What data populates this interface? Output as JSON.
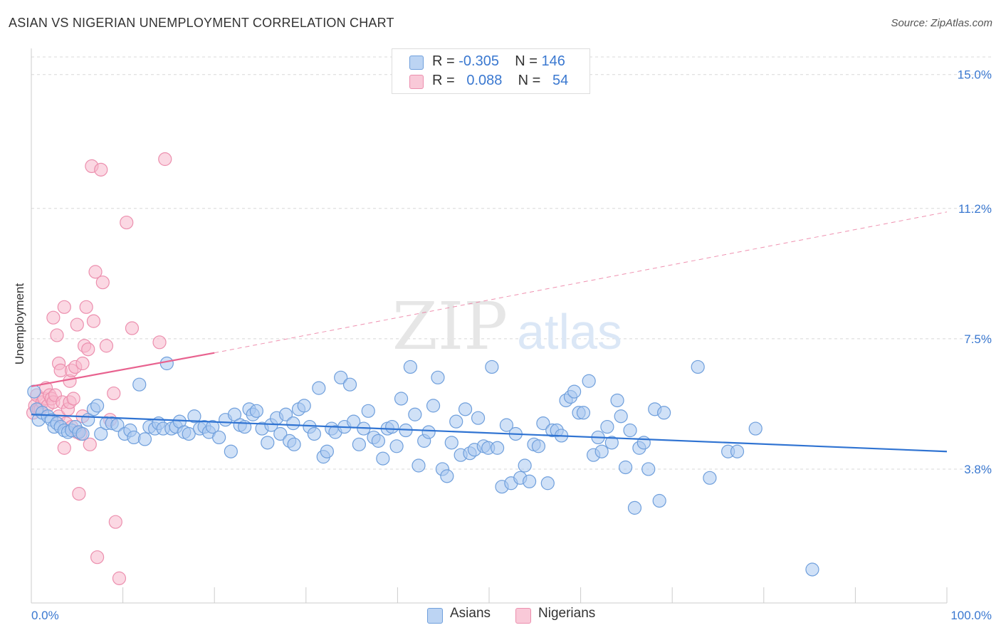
{
  "title": "ASIAN VS NIGERIAN UNEMPLOYMENT CORRELATION CHART",
  "source": "Source: ZipAtlas.com",
  "watermark": {
    "part1": "ZIP",
    "part2": "atlas"
  },
  "legend": {
    "rows": [
      {
        "r_label": "R = ",
        "r_value": "-0.305",
        "n_label": "N = ",
        "n_value": "146"
      },
      {
        "r_label": "R = ",
        "r_value": "0.088",
        "n_label": "N = ",
        "n_value": "54"
      }
    ]
  },
  "bottom_legend": [
    {
      "name": "Asians"
    },
    {
      "name": "Nigerians"
    }
  ],
  "colors": {
    "asian_fill": "#a9c8f0",
    "asian_stroke": "#6f9fdc",
    "asian_line": "#2f73d2",
    "nigerian_fill": "#f7b8cc",
    "nigerian_stroke": "#ec8fae",
    "nigerian_line": "#e8628f",
    "tick_label": "#3a78d0",
    "grid": "#d8d8d8"
  },
  "chart_data": {
    "type": "scatter",
    "title": "ASIAN VS NIGERIAN UNEMPLOYMENT CORRELATION CHART",
    "xlabel": "",
    "ylabel": "Unemployment",
    "xlim": [
      0,
      100
    ],
    "ylim": [
      0,
      15.5
    ],
    "x_tick_labels": [
      {
        "value": 0,
        "label": "0.0%"
      },
      {
        "value": 100,
        "label": "100.0%"
      }
    ],
    "y_tick_labels": [
      {
        "value": 3.8,
        "label": "3.8%"
      },
      {
        "value": 7.5,
        "label": "7.5%"
      },
      {
        "value": 11.2,
        "label": "11.2%"
      },
      {
        "value": 15.0,
        "label": "15.0%"
      }
    ],
    "grid": "horizontal dashed",
    "legend_placement": "top-center",
    "series": [
      {
        "name": "Asians",
        "r": -0.305,
        "n": 146,
        "trend": {
          "x": [
            0,
            100
          ],
          "y": [
            5.35,
            4.3
          ],
          "style": "solid"
        },
        "points": [
          [
            0.3,
            6.0
          ],
          [
            0.6,
            5.5
          ],
          [
            0.8,
            5.2
          ],
          [
            1.2,
            5.4
          ],
          [
            1.8,
            5.3
          ],
          [
            2.2,
            5.2
          ],
          [
            2.5,
            5.0
          ],
          [
            2.8,
            5.1
          ],
          [
            3.2,
            5.0
          ],
          [
            3.6,
            4.9
          ],
          [
            4.0,
            4.85
          ],
          [
            4.4,
            4.9
          ],
          [
            4.8,
            5.0
          ],
          [
            5.2,
            4.85
          ],
          [
            5.6,
            4.8
          ],
          [
            6.2,
            5.2
          ],
          [
            6.8,
            5.5
          ],
          [
            7.2,
            5.6
          ],
          [
            7.6,
            4.8
          ],
          [
            8.2,
            5.1
          ],
          [
            8.8,
            5.1
          ],
          [
            9.4,
            5.05
          ],
          [
            10.2,
            4.8
          ],
          [
            10.8,
            4.9
          ],
          [
            11.2,
            4.7
          ],
          [
            11.8,
            6.2
          ],
          [
            12.4,
            4.65
          ],
          [
            12.9,
            5.0
          ],
          [
            13.5,
            4.95
          ],
          [
            13.9,
            5.1
          ],
          [
            14.4,
            4.95
          ],
          [
            14.8,
            6.8
          ],
          [
            15.3,
            4.95
          ],
          [
            15.8,
            5.0
          ],
          [
            16.2,
            5.15
          ],
          [
            16.7,
            4.85
          ],
          [
            17.2,
            4.8
          ],
          [
            17.8,
            5.3
          ],
          [
            18.4,
            4.95
          ],
          [
            18.9,
            5.0
          ],
          [
            19.4,
            4.85
          ],
          [
            19.8,
            5.0
          ],
          [
            20.5,
            4.7
          ],
          [
            21.2,
            5.2
          ],
          [
            21.8,
            4.3
          ],
          [
            22.2,
            5.35
          ],
          [
            22.8,
            5.05
          ],
          [
            23.3,
            5.0
          ],
          [
            23.8,
            5.5
          ],
          [
            24.2,
            5.35
          ],
          [
            24.6,
            5.45
          ],
          [
            25.2,
            4.95
          ],
          [
            25.8,
            4.55
          ],
          [
            26.2,
            5.05
          ],
          [
            26.8,
            5.25
          ],
          [
            27.2,
            4.8
          ],
          [
            27.8,
            5.35
          ],
          [
            28.2,
            4.6
          ],
          [
            28.6,
            5.1
          ],
          [
            29.2,
            5.5
          ],
          [
            29.8,
            5.6
          ],
          [
            30.4,
            5.0
          ],
          [
            30.9,
            4.8
          ],
          [
            31.4,
            6.1
          ],
          [
            31.9,
            4.15
          ],
          [
            32.3,
            4.3
          ],
          [
            32.8,
            4.95
          ],
          [
            33.2,
            4.85
          ],
          [
            33.8,
            6.4
          ],
          [
            34.2,
            5.0
          ],
          [
            34.8,
            6.2
          ],
          [
            35.2,
            5.15
          ],
          [
            35.8,
            4.5
          ],
          [
            36.3,
            4.95
          ],
          [
            36.8,
            5.45
          ],
          [
            37.4,
            4.7
          ],
          [
            37.9,
            4.6
          ],
          [
            38.4,
            4.1
          ],
          [
            38.9,
            4.95
          ],
          [
            39.4,
            5.0
          ],
          [
            39.9,
            4.45
          ],
          [
            40.4,
            5.8
          ],
          [
            40.9,
            4.9
          ],
          [
            41.4,
            6.7
          ],
          [
            41.9,
            5.35
          ],
          [
            42.3,
            3.9
          ],
          [
            42.9,
            4.6
          ],
          [
            43.4,
            4.85
          ],
          [
            43.9,
            5.6
          ],
          [
            44.4,
            6.4
          ],
          [
            44.9,
            3.8
          ],
          [
            45.4,
            3.6
          ],
          [
            45.9,
            4.55
          ],
          [
            46.4,
            5.15
          ],
          [
            46.9,
            4.2
          ],
          [
            47.4,
            5.5
          ],
          [
            47.9,
            4.25
          ],
          [
            48.4,
            4.35
          ],
          [
            48.8,
            5.25
          ],
          [
            49.4,
            4.45
          ],
          [
            49.9,
            4.4
          ],
          [
            50.3,
            6.7
          ],
          [
            50.9,
            4.4
          ],
          [
            51.4,
            3.3
          ],
          [
            51.9,
            5.05
          ],
          [
            52.4,
            3.4
          ],
          [
            52.9,
            4.8
          ],
          [
            53.4,
            3.55
          ],
          [
            53.9,
            3.9
          ],
          [
            54.4,
            3.45
          ],
          [
            54.9,
            4.5
          ],
          [
            55.4,
            4.45
          ],
          [
            55.9,
            5.1
          ],
          [
            56.4,
            3.4
          ],
          [
            56.9,
            4.9
          ],
          [
            57.4,
            4.9
          ],
          [
            57.9,
            4.75
          ],
          [
            58.4,
            5.75
          ],
          [
            58.9,
            5.85
          ],
          [
            59.3,
            6.0
          ],
          [
            59.8,
            5.4
          ],
          [
            60.3,
            5.4
          ],
          [
            60.9,
            6.3
          ],
          [
            61.4,
            4.2
          ],
          [
            61.9,
            4.7
          ],
          [
            62.3,
            4.3
          ],
          [
            62.9,
            5.0
          ],
          [
            63.4,
            4.55
          ],
          [
            64.0,
            5.75
          ],
          [
            64.4,
            5.3
          ],
          [
            64.9,
            3.85
          ],
          [
            65.4,
            4.9
          ],
          [
            65.9,
            2.7
          ],
          [
            66.4,
            4.4
          ],
          [
            66.9,
            4.55
          ],
          [
            67.4,
            3.8
          ],
          [
            68.1,
            5.5
          ],
          [
            68.6,
            2.9
          ],
          [
            69.1,
            5.4
          ],
          [
            72.8,
            6.7
          ],
          [
            74.1,
            3.55
          ],
          [
            76.1,
            4.3
          ],
          [
            77.1,
            4.3
          ],
          [
            79.1,
            4.95
          ],
          [
            85.3,
            0.95
          ],
          [
            28.7,
            4.5
          ]
        ]
      },
      {
        "name": "Nigerians",
        "r": 0.088,
        "n": 54,
        "trend": {
          "x": [
            0,
            20
          ],
          "y": [
            6.15,
            7.1
          ],
          "style": "solid",
          "extension": {
            "x": [
              20,
              100
            ],
            "y": [
              7.1,
              11.1
            ],
            "style": "dashed"
          }
        },
        "points": [
          [
            0.2,
            5.4
          ],
          [
            0.4,
            5.6
          ],
          [
            0.6,
            5.9
          ],
          [
            0.8,
            5.5
          ],
          [
            1.0,
            5.5
          ],
          [
            1.2,
            5.7
          ],
          [
            1.4,
            5.8
          ],
          [
            1.6,
            6.1
          ],
          [
            1.8,
            5.6
          ],
          [
            2.0,
            5.9
          ],
          [
            2.2,
            5.8
          ],
          [
            2.4,
            5.7
          ],
          [
            2.4,
            8.1
          ],
          [
            2.6,
            5.9
          ],
          [
            2.8,
            7.6
          ],
          [
            3.0,
            5.3
          ],
          [
            3.0,
            6.8
          ],
          [
            3.2,
            6.6
          ],
          [
            3.4,
            5.7
          ],
          [
            3.6,
            4.4
          ],
          [
            3.6,
            8.4
          ],
          [
            3.8,
            5.1
          ],
          [
            4.0,
            5.5
          ],
          [
            4.2,
            6.3
          ],
          [
            4.2,
            5.7
          ],
          [
            4.4,
            6.6
          ],
          [
            4.4,
            5.0
          ],
          [
            4.6,
            5.8
          ],
          [
            4.8,
            6.7
          ],
          [
            5.0,
            4.85
          ],
          [
            5.0,
            7.9
          ],
          [
            5.2,
            3.1
          ],
          [
            5.4,
            4.8
          ],
          [
            5.6,
            6.8
          ],
          [
            5.6,
            5.3
          ],
          [
            5.8,
            7.3
          ],
          [
            6.0,
            8.4
          ],
          [
            6.2,
            7.2
          ],
          [
            6.4,
            4.5
          ],
          [
            6.6,
            12.4
          ],
          [
            6.8,
            8.0
          ],
          [
            7.0,
            9.4
          ],
          [
            7.2,
            1.3
          ],
          [
            7.6,
            12.3
          ],
          [
            7.8,
            9.1
          ],
          [
            8.2,
            7.3
          ],
          [
            8.6,
            5.2
          ],
          [
            9.0,
            5.95
          ],
          [
            9.2,
            2.3
          ],
          [
            9.6,
            0.7
          ],
          [
            10.4,
            10.8
          ],
          [
            11.0,
            7.8
          ],
          [
            14.0,
            7.4
          ],
          [
            14.6,
            12.6
          ]
        ]
      }
    ]
  }
}
